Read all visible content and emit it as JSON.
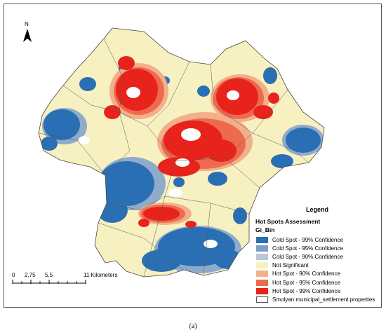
{
  "north_arrow": {
    "label": "N"
  },
  "legend": {
    "title": "Legend",
    "subtitle": "Hot Spots Assessment",
    "field": "Gi_Bin",
    "items": [
      {
        "label": "Cold Spot - 99% Confidence",
        "color": "#2a6fb4"
      },
      {
        "label": "Cold Spot - 95% Confidence",
        "color": "#7f9fc4"
      },
      {
        "label": "Cold Spot - 90% Confidence",
        "color": "#b8c8d6"
      },
      {
        "label": "Not Significant",
        "color": "#f7f0c0"
      },
      {
        "label": "Hot Spot - 90% Confidence",
        "color": "#f2b08a"
      },
      {
        "label": "Hot Spot - 95% Confidence",
        "color": "#ee6a4f"
      },
      {
        "label": "Hot Spot - 99% Confidence",
        "color": "#e8231b"
      },
      {
        "label": "Smolyan municipal_settlement properties",
        "color": "#ffffff"
      }
    ]
  },
  "scale_bar": {
    "ticks": [
      "0",
      "2,75",
      "5,5",
      "11 Kilometers"
    ]
  },
  "caption": "(a)"
}
